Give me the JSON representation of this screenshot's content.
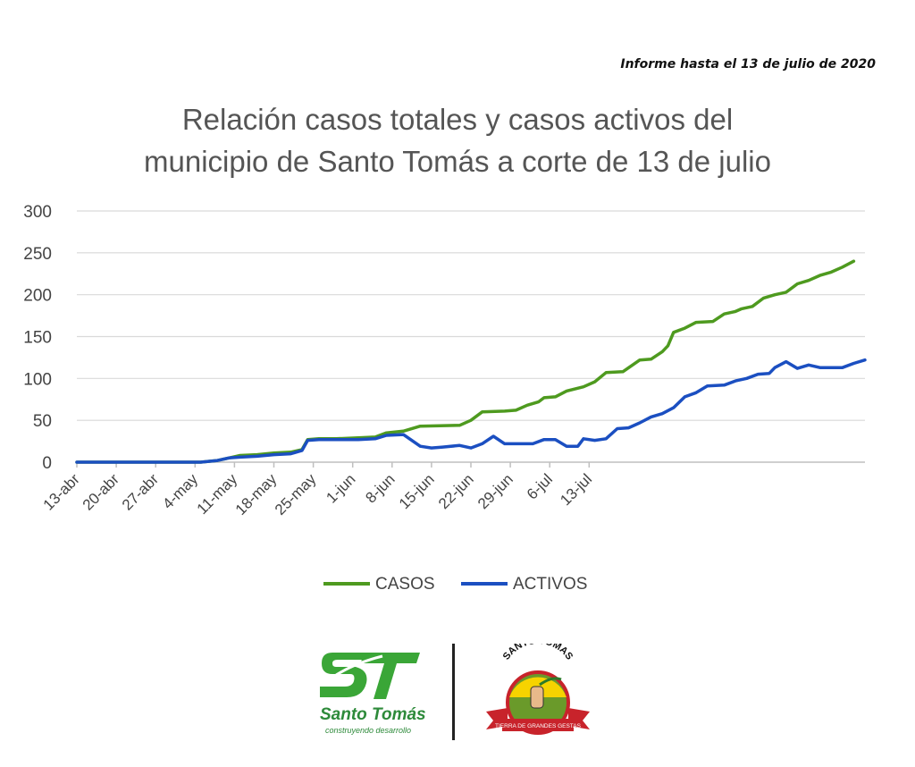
{
  "report_note": "Informe hasta el 13 de julio de 2020",
  "chart_data": {
    "type": "line",
    "title_lines": [
      "Relación casos totales y casos activos del",
      "municipio de Santo Tomás a corte de 13 de julio"
    ],
    "xlabel": "",
    "ylabel": "",
    "ylim": [
      0,
      300
    ],
    "yticks": [
      0,
      50,
      100,
      150,
      200,
      250,
      300
    ],
    "xticks": [
      "13-abr",
      "20-abr",
      "27-abr",
      "4-may",
      "11-may",
      "18-may",
      "25-may",
      "1-jun",
      "8-jun",
      "15-jun",
      "22-jun",
      "29-jun",
      "6-jul",
      "13-jul"
    ],
    "grid": "horizontal",
    "legend_position": "bottom",
    "x_start": "13-abr",
    "days": 91,
    "series": [
      {
        "name": "CASOS",
        "color": "#4e9a1f",
        "points": [
          [
            0,
            0
          ],
          [
            22,
            0
          ],
          [
            25,
            2
          ],
          [
            27,
            5
          ],
          [
            29,
            8
          ],
          [
            32,
            9
          ],
          [
            35,
            11
          ],
          [
            38,
            12
          ],
          [
            40,
            15
          ],
          [
            41,
            27
          ],
          [
            43,
            28
          ],
          [
            46,
            28
          ],
          [
            50,
            29
          ],
          [
            53,
            30
          ],
          [
            55,
            35
          ],
          [
            58,
            37
          ],
          [
            61,
            43
          ],
          [
            68,
            44
          ],
          [
            70,
            50
          ],
          [
            72,
            60
          ],
          [
            76,
            61
          ],
          [
            78,
            62
          ],
          [
            80,
            68
          ],
          [
            82,
            72
          ],
          [
            83,
            77
          ],
          [
            85,
            78
          ],
          [
            87,
            85
          ],
          [
            90,
            90
          ],
          [
            92,
            96
          ],
          [
            94,
            107
          ],
          [
            97,
            108
          ],
          [
            100,
            122
          ],
          [
            102,
            123
          ],
          [
            104,
            132
          ],
          [
            105,
            139
          ],
          [
            106,
            155
          ],
          [
            108,
            160
          ],
          [
            110,
            167
          ],
          [
            113,
            168
          ],
          [
            115,
            177
          ],
          [
            117,
            180
          ],
          [
            118,
            183
          ],
          [
            120,
            186
          ],
          [
            122,
            196
          ],
          [
            124,
            200
          ],
          [
            126,
            203
          ],
          [
            128,
            213
          ],
          [
            130,
            217
          ],
          [
            132,
            223
          ],
          [
            134,
            227
          ],
          [
            136,
            233
          ],
          [
            138,
            240
          ]
        ]
      },
      {
        "name": "ACTIVOS",
        "color": "#1b4fc1",
        "points": [
          [
            0,
            0
          ],
          [
            22,
            0
          ],
          [
            25,
            2
          ],
          [
            27,
            5
          ],
          [
            29,
            6
          ],
          [
            32,
            7
          ],
          [
            35,
            9
          ],
          [
            38,
            10
          ],
          [
            40,
            14
          ],
          [
            41,
            26
          ],
          [
            43,
            27
          ],
          [
            46,
            27
          ],
          [
            50,
            27
          ],
          [
            53,
            28
          ],
          [
            55,
            32
          ],
          [
            58,
            33
          ],
          [
            61,
            19
          ],
          [
            63,
            17
          ],
          [
            65,
            18
          ],
          [
            68,
            20
          ],
          [
            70,
            17
          ],
          [
            72,
            22
          ],
          [
            74,
            31
          ],
          [
            76,
            22
          ],
          [
            79,
            22
          ],
          [
            81,
            22
          ],
          [
            83,
            27
          ],
          [
            85,
            27
          ],
          [
            87,
            19
          ],
          [
            89,
            19
          ],
          [
            90,
            28
          ],
          [
            92,
            26
          ],
          [
            94,
            28
          ],
          [
            96,
            40
          ],
          [
            98,
            41
          ],
          [
            100,
            47
          ],
          [
            102,
            54
          ],
          [
            104,
            58
          ],
          [
            106,
            65
          ],
          [
            108,
            78
          ],
          [
            110,
            83
          ],
          [
            112,
            91
          ],
          [
            115,
            92
          ],
          [
            117,
            97
          ],
          [
            119,
            100
          ],
          [
            121,
            105
          ],
          [
            123,
            106
          ],
          [
            124,
            113
          ],
          [
            126,
            120
          ],
          [
            128,
            112
          ],
          [
            130,
            116
          ],
          [
            132,
            113
          ],
          [
            134,
            113
          ],
          [
            136,
            113
          ],
          [
            138,
            118
          ],
          [
            140,
            122
          ]
        ]
      }
    ]
  },
  "logos": {
    "left_logo_letters": "ST",
    "left_logo_name": "Santo Tomás",
    "left_logo_tagline": "construyendo desarrollo",
    "right_logo_arc_text": "SANTO TOMAS",
    "right_logo_ribbon_text": "TIERRA DE GRANDES GESTAS",
    "brand_green": "#3aa637",
    "seal_red": "#c8232b",
    "seal_yellow": "#f6d300"
  }
}
